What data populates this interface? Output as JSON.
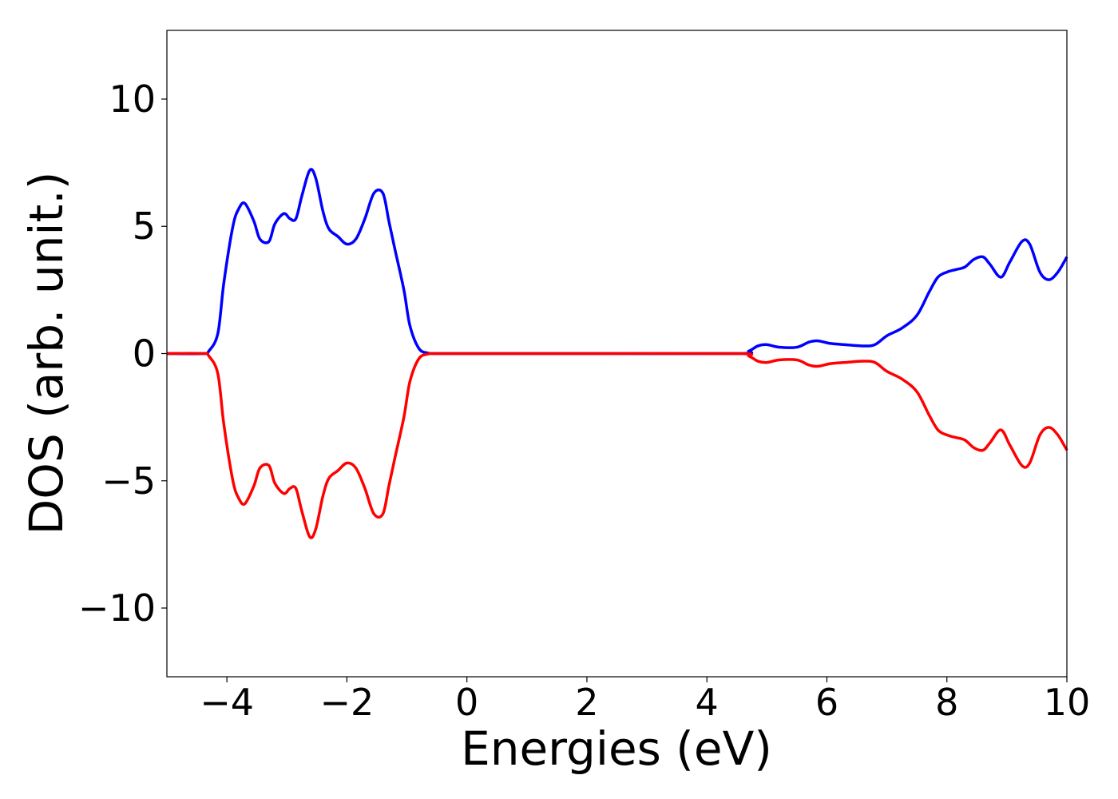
{
  "chart_data": {
    "type": "line",
    "title": "",
    "xlabel": "Energies (eV)",
    "ylabel": "DOS (arb. unit.)",
    "xlim": [
      -5,
      10
    ],
    "ylim": [
      -12.7,
      12.7
    ],
    "xticks": [
      -4,
      -2,
      0,
      2,
      4,
      6,
      8,
      10
    ],
    "xtick_labels": [
      "−4",
      "−2",
      "0",
      "2",
      "4",
      "6",
      "8",
      "10"
    ],
    "yticks": [
      10,
      5,
      0,
      -5,
      -10
    ],
    "ytick_labels": [
      "10",
      "5",
      "0",
      "−5",
      "−10"
    ],
    "grid": false,
    "legend": "none",
    "series": [
      {
        "color": "#0000ff",
        "x": [
          -5.0,
          -4.4,
          -4.3,
          -4.15,
          -4.05,
          -3.9,
          -3.8,
          -3.7,
          -3.55,
          -3.45,
          -3.3,
          -3.2,
          -3.05,
          -2.95,
          -2.85,
          -2.75,
          -2.62,
          -2.52,
          -2.4,
          -2.3,
          -2.15,
          -2.0,
          -1.85,
          -1.7,
          -1.55,
          -1.4,
          -1.3,
          -1.2,
          -1.05,
          -0.95,
          -0.8,
          -0.65,
          -0.55,
          -0.4,
          0.0,
          2.0,
          4.5,
          4.7,
          4.85,
          5.0,
          5.2,
          5.5,
          5.7,
          5.85,
          6.05,
          6.3,
          6.6,
          6.8,
          7.0,
          7.25,
          7.5,
          7.7,
          7.85,
          8.0,
          8.15,
          8.3,
          8.45,
          8.6,
          8.72,
          8.9,
          9.05,
          9.25,
          9.38,
          9.55,
          9.7,
          9.85,
          10.0
        ],
        "y": [
          0,
          0,
          0.1,
          0.8,
          2.8,
          5.0,
          5.7,
          5.9,
          5.2,
          4.5,
          4.4,
          5.1,
          5.5,
          5.3,
          5.3,
          6.2,
          7.2,
          6.9,
          5.6,
          4.9,
          4.6,
          4.3,
          4.5,
          5.3,
          6.3,
          6.3,
          5.2,
          4.1,
          2.5,
          1.1,
          0.2,
          0.02,
          0.0,
          0,
          0,
          0,
          0,
          0.1,
          0.3,
          0.35,
          0.25,
          0.25,
          0.45,
          0.5,
          0.4,
          0.35,
          0.3,
          0.35,
          0.7,
          1.0,
          1.5,
          2.4,
          3.0,
          3.2,
          3.3,
          3.4,
          3.7,
          3.8,
          3.5,
          3.0,
          3.6,
          4.4,
          4.3,
          3.2,
          2.9,
          3.2,
          3.8
        ]
      },
      {
        "color": "#ff0000",
        "x": [
          -5.0,
          -4.4,
          -4.3,
          -4.15,
          -4.05,
          -3.9,
          -3.8,
          -3.7,
          -3.55,
          -3.45,
          -3.3,
          -3.2,
          -3.05,
          -2.95,
          -2.85,
          -2.75,
          -2.62,
          -2.52,
          -2.4,
          -2.3,
          -2.15,
          -2.0,
          -1.85,
          -1.7,
          -1.55,
          -1.4,
          -1.3,
          -1.2,
          -1.05,
          -0.95,
          -0.8,
          -0.65,
          -0.55,
          -0.4,
          0.0,
          2.0,
          4.5,
          4.7,
          4.85,
          5.0,
          5.2,
          5.5,
          5.7,
          5.85,
          6.05,
          6.3,
          6.6,
          6.8,
          7.0,
          7.25,
          7.5,
          7.7,
          7.85,
          8.0,
          8.15,
          8.3,
          8.45,
          8.6,
          8.72,
          8.9,
          9.05,
          9.25,
          9.38,
          9.55,
          9.7,
          9.85,
          10.0
        ],
        "y": [
          0,
          0,
          -0.1,
          -0.8,
          -2.8,
          -5.0,
          -5.7,
          -5.9,
          -5.2,
          -4.5,
          -4.4,
          -5.1,
          -5.5,
          -5.3,
          -5.3,
          -6.2,
          -7.2,
          -6.9,
          -5.6,
          -4.9,
          -4.6,
          -4.3,
          -4.5,
          -5.3,
          -6.3,
          -6.3,
          -5.2,
          -4.1,
          -2.5,
          -1.1,
          -0.2,
          -0.02,
          0.0,
          0,
          0,
          0,
          0,
          -0.1,
          -0.3,
          -0.35,
          -0.25,
          -0.25,
          -0.45,
          -0.5,
          -0.4,
          -0.35,
          -0.3,
          -0.35,
          -0.7,
          -1.0,
          -1.5,
          -2.4,
          -3.0,
          -3.2,
          -3.3,
          -3.4,
          -3.7,
          -3.8,
          -3.5,
          -3.0,
          -3.6,
          -4.4,
          -4.3,
          -3.2,
          -2.9,
          -3.2,
          -3.8
        ]
      }
    ]
  }
}
